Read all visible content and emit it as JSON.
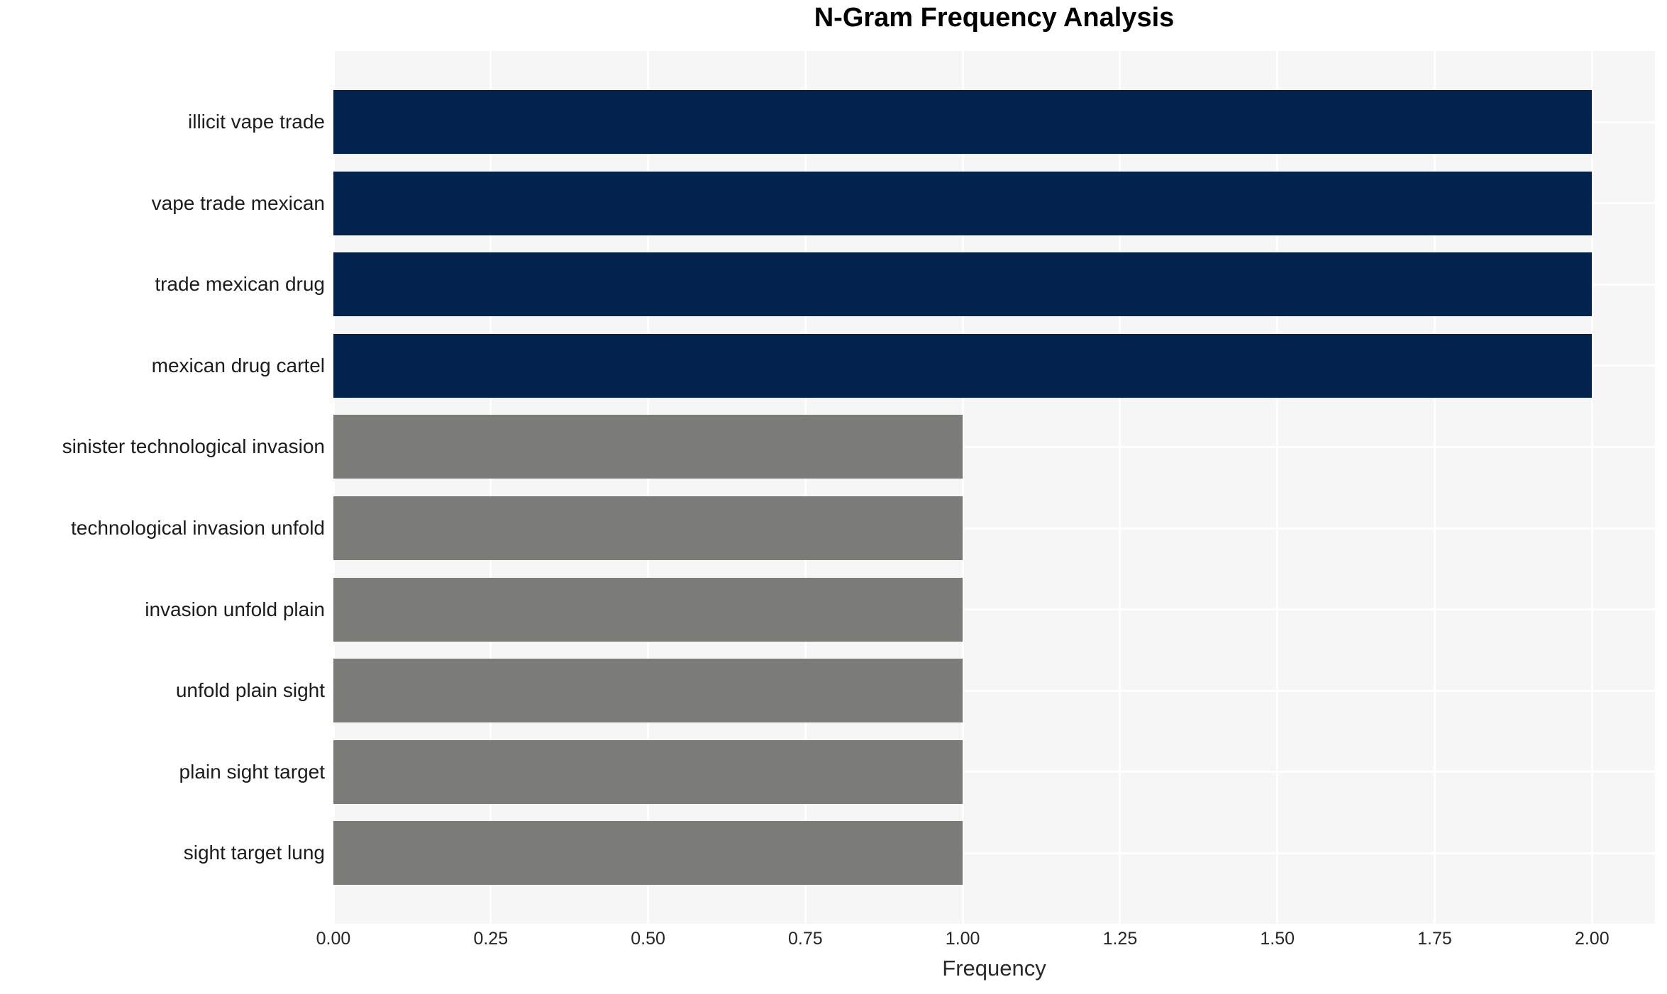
{
  "chart_data": {
    "type": "bar",
    "orientation": "horizontal",
    "title": "N-Gram Frequency Analysis",
    "xlabel": "Frequency",
    "ylabel": "",
    "categories": [
      "illicit vape trade",
      "vape trade mexican",
      "trade mexican drug",
      "mexican drug cartel",
      "sinister technological invasion",
      "technological invasion unfold",
      "invasion unfold plain",
      "unfold plain sight",
      "plain sight target",
      "sight target lung"
    ],
    "values": [
      2,
      2,
      2,
      2,
      1,
      1,
      1,
      1,
      1,
      1
    ],
    "bar_colors": [
      "#02234d",
      "#02234d",
      "#02234d",
      "#02234d",
      "#7b7b78",
      "#7b7b78",
      "#7b7b78",
      "#7b7b78",
      "#7b7b78",
      "#7b7b78"
    ],
    "xlim": [
      0,
      2.1
    ],
    "xtick_labels": [
      "0.00",
      "0.25",
      "0.50",
      "0.75",
      "1.00",
      "1.25",
      "1.50",
      "1.75",
      "2.00"
    ],
    "xtick_values": [
      0,
      0.25,
      0.5,
      0.75,
      1.0,
      1.25,
      1.5,
      1.75,
      2.0
    ],
    "grid": "white gridlines on both axes, drawn under bars",
    "legend_position": "none",
    "colors": {
      "high_frequency_bar": "#02234d",
      "low_frequency_bar": "#7b7b78",
      "plot_background": "#f6f6f6",
      "gridline": "#ffffff",
      "page_background": "#ffffff",
      "label_text": "#1c1c1c",
      "tick_text": "#262626",
      "title_text": "#000000"
    }
  }
}
